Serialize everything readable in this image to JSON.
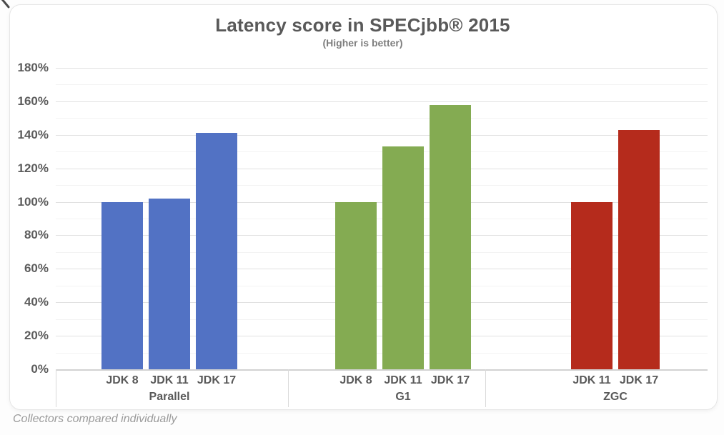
{
  "chart_data": {
    "type": "bar",
    "title": "Latency score in SPECjbb® 2015",
    "subtitle": "(Higher is better)",
    "annotation": "Collectors compared individually",
    "grid": true,
    "legend": "none",
    "y_axis": {
      "min": 0,
      "max": 180,
      "major_step": 20,
      "minor_step": 10,
      "tick_labels": [
        "0%",
        "20%",
        "40%",
        "60%",
        "80%",
        "100%",
        "120%",
        "140%",
        "160%",
        "180%"
      ]
    },
    "groups": [
      {
        "name": "Parallel",
        "color": "#5272c4",
        "bars": [
          {
            "label": "JDK 8",
            "value": 100
          },
          {
            "label": "JDK 11",
            "value": 102
          },
          {
            "label": "JDK 17",
            "value": 141
          }
        ]
      },
      {
        "name": "G1",
        "color": "#84ab52",
        "bars": [
          {
            "label": "JDK 8",
            "value": 100
          },
          {
            "label": "JDK 11",
            "value": 133
          },
          {
            "label": "JDK 17",
            "value": 158
          }
        ]
      },
      {
        "name": "ZGC",
        "color": "#b52b1c",
        "bars": [
          {
            "label": "JDK 11",
            "value": 100
          },
          {
            "label": "JDK 17",
            "value": 143
          }
        ]
      }
    ]
  }
}
